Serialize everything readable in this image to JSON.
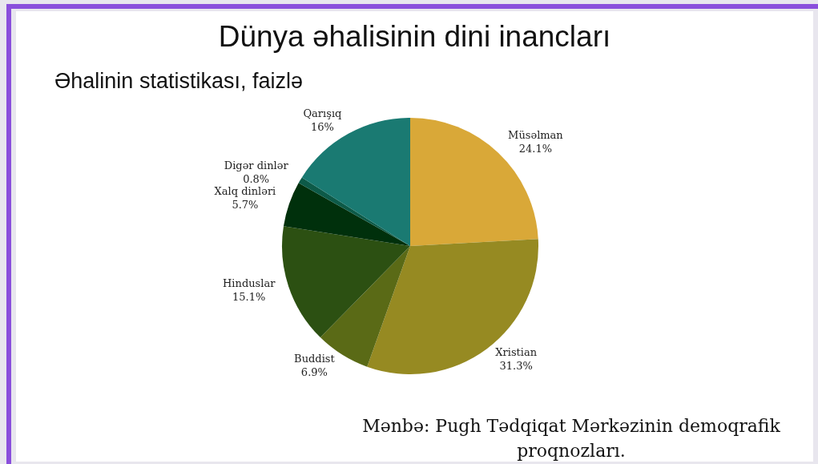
{
  "chart_data": {
    "type": "pie",
    "title": "Dünya əhalisinin dini inancları",
    "subtitle": "Əhalinin statistikası, faizlə",
    "categories": [
      "Müsəlman",
      "Xristian",
      "Buddist",
      "Hinduslar",
      "Xalq dinləri",
      "Digər dinlər",
      "Qarışıq"
    ],
    "values": [
      24.1,
      31.3,
      6.9,
      15.1,
      5.7,
      0.8,
      16
    ],
    "value_labels": [
      "24.1%",
      "31.3%",
      "6.9%",
      "15.1%",
      "5.7%",
      "0.8%",
      "16%"
    ],
    "colors": [
      "#d9a838",
      "#968a22",
      "#5a6a16",
      "#2c5012",
      "#00300c",
      "#0d5a48",
      "#1a7a72"
    ],
    "annotations": [
      "Mənbə: Pugh Tədqiqat Mərkəzinin demoqrafik proqnozları."
    ]
  }
}
